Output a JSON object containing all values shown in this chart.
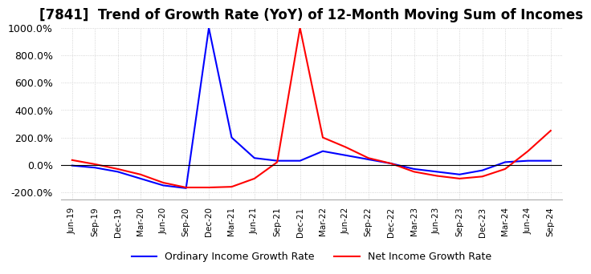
{
  "title": "[7841]  Trend of Growth Rate (YoY) of 12-Month Moving Sum of Incomes",
  "title_fontsize": 12,
  "ylim": [
    -250,
    1000
  ],
  "yticks": [
    -200,
    0,
    200,
    400,
    600,
    800,
    1000
  ],
  "legend_labels": [
    "Ordinary Income Growth Rate",
    "Net Income Growth Rate"
  ],
  "line_colors": [
    "#0000ff",
    "#ff0000"
  ],
  "grid_color": "#c8c8c8",
  "grid_color_minor": "#e0e0e0",
  "background_color": "#ffffff",
  "x_labels": [
    "Jun-19",
    "Sep-19",
    "Dec-19",
    "Mar-20",
    "Jun-20",
    "Sep-20",
    "Dec-20",
    "Mar-21",
    "Jun-21",
    "Sep-21",
    "Dec-21",
    "Mar-22",
    "Jun-22",
    "Sep-22",
    "Dec-22",
    "Mar-23",
    "Jun-23",
    "Sep-23",
    "Dec-23",
    "Mar-24",
    "Jun-24",
    "Sep-24"
  ],
  "ordinary_income_growth": [
    -5,
    -20,
    -50,
    -100,
    -150,
    -170,
    1000,
    200,
    50,
    30,
    30,
    100,
    70,
    40,
    10,
    -30,
    -50,
    -70,
    -40,
    20,
    30,
    30
  ],
  "net_income_growth": [
    35,
    5,
    -30,
    -70,
    -130,
    -165,
    -165,
    -160,
    -100,
    20,
    1000,
    200,
    130,
    50,
    10,
    -50,
    -80,
    -100,
    -85,
    -30,
    100,
    250
  ]
}
